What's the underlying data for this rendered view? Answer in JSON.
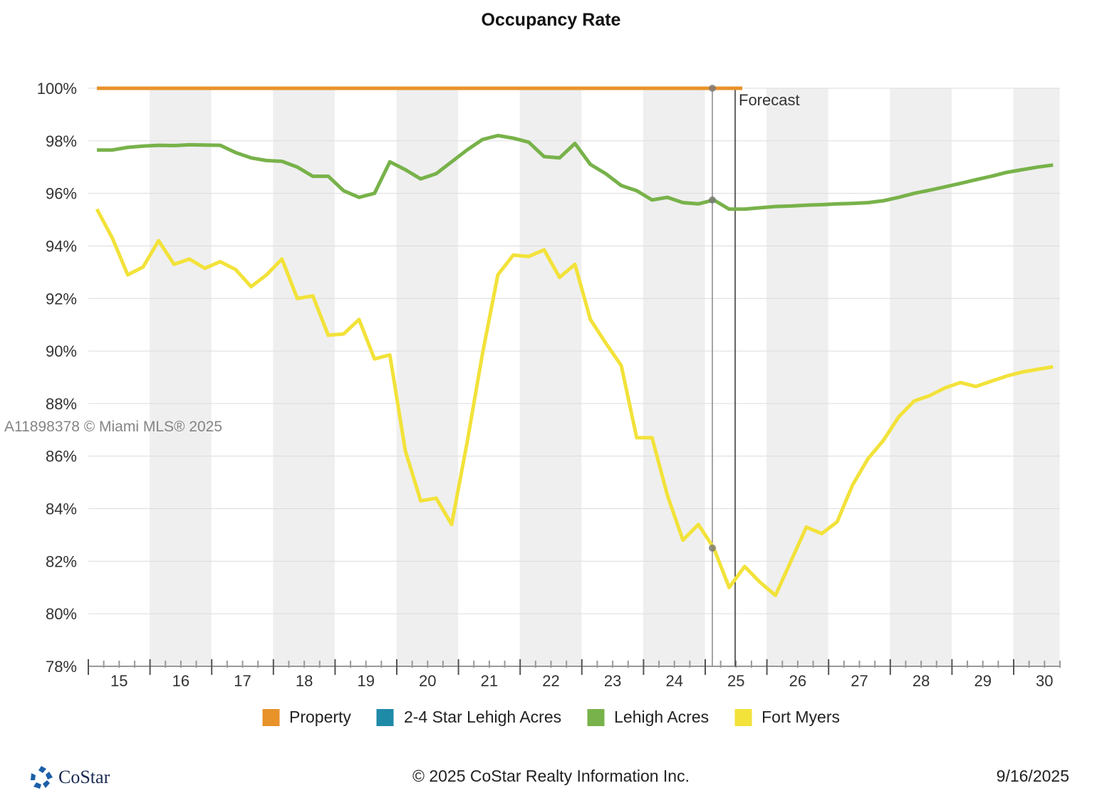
{
  "chart_data": {
    "type": "line",
    "title": "Occupancy Rate",
    "xlabel": "",
    "ylabel": "",
    "ylim": [
      78,
      100
    ],
    "yticks": [
      "78%",
      "80%",
      "82%",
      "84%",
      "86%",
      "88%",
      "90%",
      "92%",
      "94%",
      "96%",
      "98%",
      "100%"
    ],
    "xticks": [
      "15",
      "16",
      "17",
      "18",
      "19",
      "20",
      "21",
      "22",
      "23",
      "24",
      "25",
      "26",
      "27",
      "28",
      "29",
      "30"
    ],
    "x_unit": "quarter index starting 2015 Q1",
    "forecast_label": "Forecast",
    "grid": true,
    "legend_position": "bottom",
    "series": [
      {
        "name": "Property",
        "color": "#e8922a",
        "values": [
          100,
          100,
          100,
          100,
          100,
          100,
          100,
          100,
          100,
          100,
          100,
          100,
          100,
          100,
          100,
          100,
          100,
          100,
          100,
          100,
          100,
          100,
          100,
          100,
          100,
          100,
          100,
          100,
          100,
          100,
          100,
          100,
          100,
          100,
          100,
          100,
          100,
          100,
          100,
          100,
          100,
          100,
          100
        ]
      },
      {
        "name": "2-4 Star Lehigh Acres",
        "color": "#1f8aa8",
        "values": []
      },
      {
        "name": "Lehigh Acres",
        "color": "#78b24a",
        "values": [
          97.65,
          97.65,
          97.75,
          97.8,
          97.83,
          97.82,
          97.85,
          97.84,
          97.83,
          97.55,
          97.35,
          97.25,
          97.22,
          97.0,
          96.65,
          96.65,
          96.1,
          95.85,
          96.0,
          97.2,
          96.9,
          96.55,
          96.75,
          97.2,
          97.65,
          98.05,
          98.2,
          98.1,
          97.95,
          97.4,
          97.35,
          97.9,
          97.1,
          96.75,
          96.3,
          96.1,
          95.75,
          95.85,
          95.65,
          95.6,
          95.75,
          95.4,
          95.4,
          95.45,
          95.5,
          95.52,
          95.55,
          95.57,
          95.6,
          95.62,
          95.65,
          95.72,
          95.85,
          96.0,
          96.12,
          96.25,
          96.38,
          96.52,
          96.65,
          96.8,
          96.9,
          97.0,
          97.08
        ]
      },
      {
        "name": "Fort Myers",
        "color": "#f2e23a",
        "values": [
          95.4,
          94.3,
          92.9,
          93.2,
          94.2,
          93.3,
          93.5,
          93.15,
          93.4,
          93.1,
          92.45,
          92.9,
          93.5,
          92.0,
          92.1,
          90.6,
          90.65,
          91.2,
          89.7,
          89.85,
          86.2,
          84.3,
          84.4,
          83.4,
          86.5,
          89.9,
          92.9,
          93.65,
          93.6,
          93.85,
          92.8,
          93.3,
          91.2,
          90.3,
          89.45,
          86.7,
          86.7,
          84.5,
          82.8,
          83.4,
          82.5,
          81.0,
          81.8,
          81.2,
          80.7,
          82.0,
          83.3,
          83.05,
          83.5,
          84.9,
          85.9,
          86.6,
          87.5,
          88.1,
          88.3,
          88.6,
          88.8,
          88.65,
          88.85,
          89.05,
          89.2,
          89.3,
          89.4
        ]
      }
    ]
  },
  "watermark": "A11898378 © Miami MLS® 2025",
  "footer": {
    "logo": "CoStar",
    "copyright": "© 2025 CoStar Realty Information Inc.",
    "date": "9/16/2025"
  }
}
